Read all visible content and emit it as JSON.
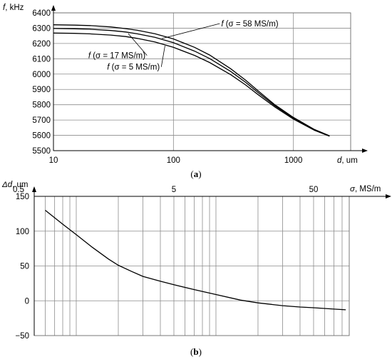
{
  "chart_data": [
    {
      "id": "a",
      "type": "line",
      "caption_prefix": "(",
      "caption_letter": "a",
      "caption_suffix": ")",
      "ylabel_var": "f",
      "ylabel_unit": ", kHz",
      "xlabel_var": "d",
      "xlabel_unit": ", um",
      "x_scale": "log",
      "xlim": [
        10,
        3000
      ],
      "ylim": [
        5500,
        6400
      ],
      "x_ticks": [
        {
          "value": 10,
          "label": "10"
        },
        {
          "value": 100,
          "label": "100"
        },
        {
          "value": 1000,
          "label": "1000"
        }
      ],
      "y_ticks": [
        {
          "value": 5500,
          "label": "5500"
        },
        {
          "value": 5600,
          "label": "5600"
        },
        {
          "value": 5700,
          "label": "5700"
        },
        {
          "value": 5800,
          "label": "5800"
        },
        {
          "value": 5900,
          "label": "5900"
        },
        {
          "value": 6000,
          "label": "6000"
        },
        {
          "value": 6100,
          "label": "6100"
        },
        {
          "value": 6200,
          "label": "6200"
        },
        {
          "value": 6300,
          "label": "6300"
        },
        {
          "value": 6400,
          "label": "6400"
        }
      ],
      "series": [
        {
          "label_var": "f",
          "label_rest": " (σ = 58 MS/m)",
          "label_at": {
            "x": 250,
            "y": 6330
          },
          "leader_to": {
            "x": 80,
            "y": 6232
          },
          "x": [
            10,
            15,
            20,
            30,
            40,
            50,
            70,
            100,
            150,
            200,
            300,
            400,
            500,
            700,
            1000,
            1500,
            2000
          ],
          "y": [
            6322,
            6320,
            6317,
            6308,
            6297,
            6286,
            6264,
            6230,
            6175,
            6125,
            6035,
            5960,
            5895,
            5800,
            5717,
            5638,
            5597
          ]
        },
        {
          "label_var": "f",
          "label_rest": " (σ = 17 MS/m)",
          "label_at": {
            "x": 19.5,
            "y": 6122
          },
          "leader_to": {
            "x": 42,
            "y": 6265
          },
          "x": [
            10,
            15,
            20,
            30,
            40,
            50,
            70,
            100,
            150,
            200,
            300,
            400,
            500,
            700,
            1000,
            1500,
            2000
          ],
          "y": [
            6298,
            6296,
            6293,
            6285,
            6275,
            6263,
            6240,
            6205,
            6150,
            6102,
            6017,
            5946,
            5884,
            5793,
            5712,
            5636,
            5596
          ]
        },
        {
          "label_var": "f",
          "label_rest": " (σ = 5 MS/m)",
          "label_at": {
            "x": 28,
            "y": 6047
          },
          "leader_to": {
            "x": 85,
            "y": 6185
          },
          "x": [
            10,
            15,
            20,
            30,
            40,
            50,
            70,
            100,
            150,
            200,
            300,
            400,
            500,
            700,
            1000,
            1500,
            2000
          ],
          "y": [
            6268,
            6266,
            6263,
            6255,
            6245,
            6233,
            6210,
            6175,
            6122,
            6076,
            5996,
            5929,
            5870,
            5785,
            5706,
            5633,
            5594
          ]
        }
      ]
    },
    {
      "id": "b",
      "type": "line",
      "caption_prefix": "(",
      "caption_letter": "b",
      "caption_suffix": ")",
      "ylabel_var": "Δd",
      "ylabel_unit": ", um",
      "xlabel_var": "σ",
      "xlabel_unit": ", MS/m",
      "x_scale": "log",
      "xlim": [
        0.5,
        90
      ],
      "ylim": [
        -50,
        150
      ],
      "x_ticks": [
        {
          "value": 0.5,
          "label": "0.5"
        },
        {
          "value": 5,
          "label": "5"
        },
        {
          "value": 50,
          "label": "50"
        }
      ],
      "y_ticks": [
        {
          "value": -50,
          "label": "−50"
        },
        {
          "value": 0,
          "label": "0"
        },
        {
          "value": 50,
          "label": "50"
        },
        {
          "value": 100,
          "label": "100"
        },
        {
          "value": 150,
          "label": "150"
        }
      ],
      "series": [
        {
          "x": [
            0.6,
            0.8,
            1,
            1.3,
            1.7,
            2,
            2.5,
            3,
            4,
            5,
            7,
            10,
            15,
            20,
            30,
            40,
            50,
            70,
            85
          ],
          "y": [
            130,
            110,
            95,
            77,
            60,
            51,
            42,
            35,
            28,
            23,
            16,
            9,
            1,
            -3,
            -7,
            -9,
            -10,
            -12,
            -13
          ]
        }
      ]
    }
  ]
}
